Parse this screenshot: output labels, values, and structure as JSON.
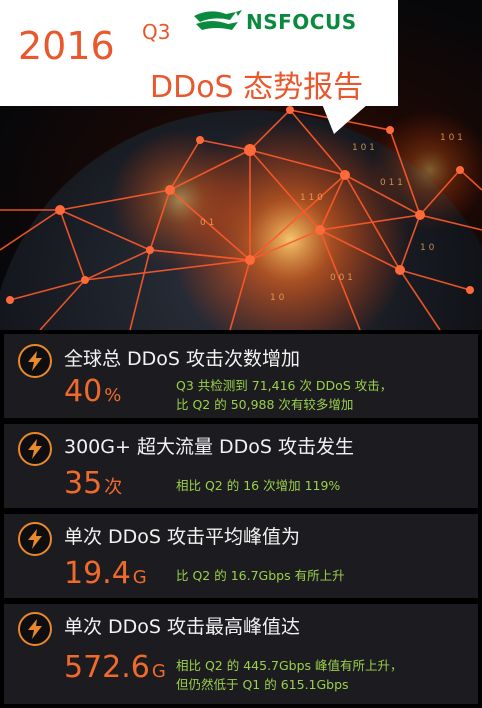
{
  "header": {
    "year": "2016",
    "quarter": "Q3",
    "title": "DDoS 态势报告",
    "logo_text": "NSFOCUS",
    "accent": "#e8582c",
    "logo_color": "#0a8a3e"
  },
  "stats": [
    {
      "title": "全球总 DDoS 攻击次数增加",
      "value": "40",
      "unit": "%",
      "desc": [
        "Q3 共检测到 71,416 次 DDoS 攻击，",
        "比 Q2 的 50,988 次有较多增加"
      ],
      "icon": "lightning-bolt-icon"
    },
    {
      "title": "300G+ 超大流量 DDoS 攻击发生",
      "value": "35",
      "unit": "次",
      "desc": [
        "相比 Q2 的 16 次增加 119%"
      ],
      "icon": "lightning-bolt-icon"
    },
    {
      "title": "单次 DDoS 攻击平均峰值为",
      "value": "19.4",
      "unit": "G",
      "desc": [
        "比 Q2 的 16.7Gbps 有所上升"
      ],
      "icon": "lightning-bolt-icon"
    },
    {
      "title": "单次 DDoS 攻击最高峰值达",
      "value": "572.6",
      "unit": "G",
      "desc": [
        "相比 Q2 的 445.7Gbps 峰值有所上升，",
        "但仍然低于 Q1 的 615.1Gbps"
      ],
      "icon": "lightning-bolt-icon"
    }
  ]
}
